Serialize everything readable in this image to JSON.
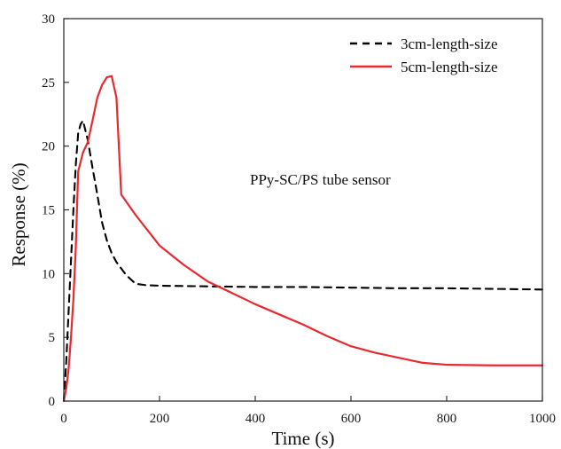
{
  "chart_data": {
    "type": "line",
    "title": "",
    "xlabel": "Time (s)",
    "ylabel": "Response (%)",
    "xlim": [
      0,
      1000
    ],
    "ylim": [
      0,
      30
    ],
    "xticks": [
      0,
      200,
      400,
      600,
      800,
      1000
    ],
    "yticks": [
      0,
      5,
      10,
      15,
      20,
      25,
      30
    ],
    "xtick_labels": [
      "0",
      "200",
      "400",
      "600",
      "800",
      "1000"
    ],
    "ytick_labels": [
      "0",
      "5",
      "10",
      "15",
      "20",
      "25",
      "30"
    ],
    "grid": false,
    "legend_position": "top-right",
    "annotation": "PPy-SC/PS tube sensor",
    "series": [
      {
        "name": "3cm-length-size",
        "color": "#000000",
        "line_style": "dashed",
        "x": [
          0,
          5,
          10,
          15,
          20,
          25,
          30,
          35,
          40,
          50,
          60,
          70,
          80,
          90,
          100,
          110,
          130,
          150,
          170,
          200,
          300,
          400,
          500,
          600,
          700,
          800,
          900,
          1000
        ],
        "y": [
          0,
          3,
          7,
          11,
          15,
          18.5,
          21,
          21.7,
          22,
          20.5,
          18.3,
          16.2,
          14,
          12.6,
          11.6,
          10.9,
          9.9,
          9.2,
          9.1,
          9.05,
          9.0,
          8.95,
          8.95,
          8.9,
          8.85,
          8.85,
          8.8,
          8.75
        ]
      },
      {
        "name": "5cm-length-size",
        "color": "#e8292f",
        "line_style": "solid",
        "x": [
          0,
          5,
          10,
          15,
          20,
          25,
          30,
          40,
          50,
          60,
          70,
          80,
          90,
          100,
          110,
          120,
          150,
          200,
          250,
          300,
          350,
          400,
          450,
          500,
          550,
          600,
          650,
          700,
          750,
          800,
          900,
          1000
        ],
        "y": [
          0,
          1,
          2.5,
          5,
          8,
          12,
          18,
          19.5,
          20.3,
          22,
          23.8,
          24.8,
          25.4,
          25.5,
          23.8,
          16.2,
          14.6,
          12.2,
          10.7,
          9.4,
          8.5,
          7.6,
          6.8,
          6.0,
          5.1,
          4.3,
          3.8,
          3.4,
          3.0,
          2.85,
          2.8,
          2.8
        ]
      }
    ]
  }
}
